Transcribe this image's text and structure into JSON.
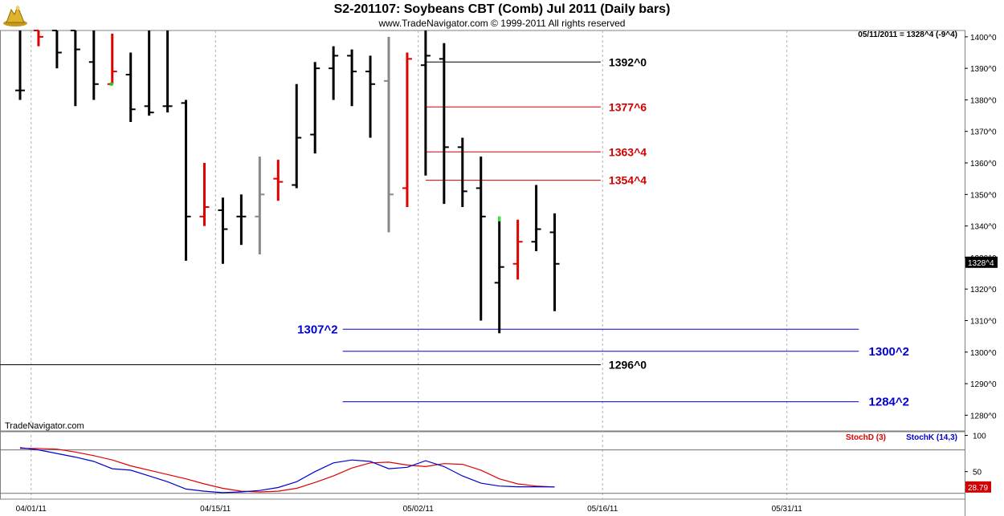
{
  "header": {
    "title": "S2-201107:  Soybeans CBT (Comb) Jul 2011  (Daily bars)",
    "subtitle": "www.TradeNavigator.com © 1999-2011 All rights reserved"
  },
  "readout": "05/11/2011 = 1328^4 (-9^4)",
  "last_price_tag": "1328^4",
  "watermark": "TradeNavigator.com",
  "colors": {
    "up_black": "#000000",
    "down_red": "#e00000",
    "neutral_gray": "#888888",
    "level_black": "#000000",
    "level_red": "#d00000",
    "level_blue": "#0000d0",
    "stoch_d": "#e00000",
    "stoch_k": "#0000d0"
  },
  "chart_data": [
    {
      "type": "ohlc",
      "ylim": [
        1275,
        1402
      ],
      "y_ticks": [
        {
          "value": 1400,
          "label": "1400^0"
        },
        {
          "value": 1390,
          "label": "1390^0"
        },
        {
          "value": 1380,
          "label": "1380^0"
        },
        {
          "value": 1370,
          "label": "1370^0"
        },
        {
          "value": 1360,
          "label": "1360^0"
        },
        {
          "value": 1350,
          "label": "1350^0"
        },
        {
          "value": 1340,
          "label": "1340^0"
        },
        {
          "value": 1330,
          "label": "1330^0"
        },
        {
          "value": 1320,
          "label": "1320^0"
        },
        {
          "value": 1310,
          "label": "1310^0"
        },
        {
          "value": 1300,
          "label": "1300^0"
        },
        {
          "value": 1290,
          "label": "1290^0"
        },
        {
          "value": 1280,
          "label": "1280^0"
        }
      ],
      "x_ticks": [
        "04/01/11",
        "04/15/11",
        "05/02/11",
        "05/16/11",
        "05/31/11"
      ],
      "bars": [
        {
          "i": 0,
          "o": 1383,
          "h": 1402,
          "l": 1380,
          "c": 1383,
          "color": "black"
        },
        {
          "i": 1,
          "o": 1402,
          "h": 1402,
          "l": 1397,
          "c": 1400,
          "color": "red"
        },
        {
          "i": 2,
          "o": 1402,
          "h": 1402,
          "l": 1390,
          "c": 1395,
          "color": "black"
        },
        {
          "i": 3,
          "o": 1402,
          "h": 1402,
          "l": 1378,
          "c": 1396,
          "color": "black"
        },
        {
          "i": 4,
          "o": 1392,
          "h": 1402,
          "l": 1380,
          "c": 1385,
          "color": "black"
        },
        {
          "i": 5,
          "o": 1385,
          "h": 1401,
          "l": 1385,
          "c": 1389,
          "color": "red"
        },
        {
          "i": 6,
          "o": 1388,
          "h": 1395,
          "l": 1373,
          "c": 1377,
          "color": "black"
        },
        {
          "i": 7,
          "o": 1378,
          "h": 1402,
          "l": 1375,
          "c": 1376,
          "color": "black"
        },
        {
          "i": 8,
          "o": 1378,
          "h": 1402,
          "l": 1376,
          "c": 1378,
          "color": "black"
        },
        {
          "i": 9,
          "o": 1379,
          "h": 1380,
          "l": 1329,
          "c": 1343,
          "color": "black"
        },
        {
          "i": 10,
          "o": 1343,
          "h": 1360,
          "l": 1340,
          "c": 1346,
          "color": "red"
        },
        {
          "i": 11,
          "o": 1345,
          "h": 1349,
          "l": 1328,
          "c": 1339,
          "color": "black"
        },
        {
          "i": 12,
          "o": 1343,
          "h": 1350,
          "l": 1334,
          "c": 1343,
          "color": "black"
        },
        {
          "i": 13,
          "o": 1343,
          "h": 1362,
          "l": 1331,
          "c": 1350,
          "color": "gray"
        },
        {
          "i": 14,
          "o": 1355,
          "h": 1361,
          "l": 1348,
          "c": 1354,
          "color": "red"
        },
        {
          "i": 15,
          "o": 1353,
          "h": 1385,
          "l": 1352,
          "c": 1368,
          "color": "black"
        },
        {
          "i": 16,
          "o": 1369,
          "h": 1392,
          "l": 1363,
          "c": 1390,
          "color": "black"
        },
        {
          "i": 17,
          "o": 1390,
          "h": 1397,
          "l": 1380,
          "c": 1394,
          "color": "black"
        },
        {
          "i": 18,
          "o": 1394,
          "h": 1396,
          "l": 1378,
          "c": 1389,
          "color": "black"
        },
        {
          "i": 19,
          "o": 1389,
          "h": 1394,
          "l": 1368,
          "c": 1385,
          "color": "black"
        },
        {
          "i": 20,
          "o": 1386,
          "h": 1400,
          "l": 1338,
          "c": 1350,
          "color": "gray"
        },
        {
          "i": 21,
          "o": 1352,
          "h": 1395,
          "l": 1346,
          "c": 1393,
          "color": "red"
        },
        {
          "i": 22,
          "o": 1391,
          "h": 1402,
          "l": 1356,
          "c": 1394,
          "color": "black"
        },
        {
          "i": 23,
          "o": 1393,
          "h": 1398,
          "l": 1347,
          "c": 1365,
          "color": "black"
        },
        {
          "i": 24,
          "o": 1365,
          "h": 1368,
          "l": 1346,
          "c": 1351,
          "color": "black"
        },
        {
          "i": 25,
          "o": 1352,
          "h": 1362,
          "l": 1310,
          "c": 1343,
          "color": "black"
        },
        {
          "i": 26,
          "o": 1322,
          "h": 1343,
          "l": 1306,
          "c": 1327,
          "color": "black"
        },
        {
          "i": 27,
          "o": 1328,
          "h": 1342,
          "l": 1323,
          "c": 1335,
          "color": "red"
        },
        {
          "i": 28,
          "o": 1335,
          "h": 1353,
          "l": 1332,
          "c": 1339,
          "color": "black"
        },
        {
          "i": 29,
          "o": 1338,
          "h": 1344,
          "l": 1313,
          "c": 1328,
          "color": "black"
        }
      ],
      "levels": [
        {
          "value": 1392,
          "label": "1392^0",
          "color": "black",
          "from_i": 22,
          "to_i": 31.5,
          "label_side": "right"
        },
        {
          "value": 1377.75,
          "label": "1377^6",
          "color": "red",
          "from_i": 22,
          "to_i": 31.5,
          "label_side": "right"
        },
        {
          "value": 1363.5,
          "label": "1363^4",
          "color": "red",
          "from_i": 22,
          "to_i": 31.5,
          "label_side": "right"
        },
        {
          "value": 1354.5,
          "label": "1354^4",
          "color": "red",
          "from_i": 22,
          "to_i": 31.5,
          "label_side": "right"
        },
        {
          "value": 1307.25,
          "label": "1307^2",
          "color": "blue",
          "from_i": 17.5,
          "to_i": 45.5,
          "label_side": "left"
        },
        {
          "value": 1300.25,
          "label": "1300^2",
          "color": "blue",
          "from_i": 17.5,
          "to_i": 45.5,
          "label_side": "far_right"
        },
        {
          "value": 1296,
          "label": "1296^0",
          "color": "black",
          "from_i": -1,
          "to_i": 31.5,
          "label_side": "right"
        },
        {
          "value": 1284.25,
          "label": "1284^2",
          "color": "blue",
          "from_i": 17.5,
          "to_i": 45.5,
          "label_side": "far_right"
        }
      ]
    },
    {
      "type": "line",
      "ylim": [
        12,
        105
      ],
      "y_ticks": [
        {
          "value": 100,
          "label": "100"
        },
        {
          "value": 50,
          "label": "50"
        }
      ],
      "reference_lines": [
        80,
        20
      ],
      "legend": [
        "StochD (3)",
        "StochK (14,3)"
      ],
      "last_value_tag": "28.79",
      "series": [
        {
          "name": "StochD (3)",
          "color": "red",
          "values": [
            82,
            82,
            81,
            77,
            72,
            66,
            58,
            52,
            46,
            40,
            33,
            27,
            23,
            22,
            23,
            27,
            35,
            44,
            55,
            62,
            63,
            59,
            57,
            61,
            60,
            52,
            40,
            33,
            30,
            28.79
          ]
        },
        {
          "name": "StochK (14,3)",
          "color": "blue",
          "values": [
            83,
            80,
            75,
            70,
            64,
            54,
            52,
            44,
            36,
            26,
            23,
            21,
            22,
            24,
            28,
            36,
            50,
            62,
            66,
            64,
            54,
            56,
            65,
            57,
            44,
            34,
            30,
            29,
            29,
            28.79
          ]
        }
      ]
    }
  ]
}
